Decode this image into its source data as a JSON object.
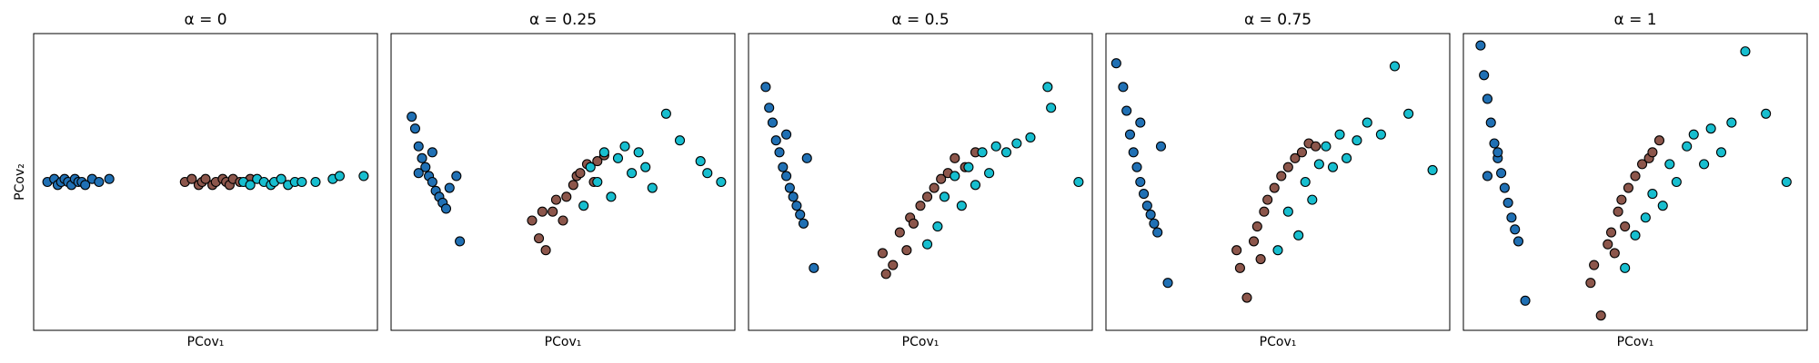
{
  "chart_data": [
    {
      "type": "scatter",
      "title": "α = 0",
      "xlabel": "PCov₁",
      "ylabel": "PCov₂",
      "xlim": [
        0,
        100
      ],
      "ylim": [
        0,
        100
      ],
      "series": [
        {
          "color": "#2070b4",
          "x": [
            4,
            6,
            7,
            8,
            9,
            10,
            11,
            12,
            13,
            14,
            15,
            17,
            19,
            22
          ],
          "values": [
            50,
            51,
            49,
            50,
            51,
            50,
            49,
            51,
            50,
            50,
            49,
            51,
            50,
            51
          ]
        },
        {
          "color": "#8c564b",
          "x": [
            44,
            46,
            48,
            49,
            50,
            52,
            53,
            55,
            56,
            57,
            58,
            60,
            62,
            63
          ],
          "values": [
            50,
            51,
            49,
            50,
            51,
            49,
            50,
            51,
            50,
            49,
            51,
            50,
            50,
            51
          ]
        },
        {
          "color": "#17becf",
          "x": [
            61,
            63,
            65,
            67,
            69,
            70,
            72,
            74,
            76,
            78,
            82,
            87,
            89,
            96
          ],
          "values": [
            50,
            49,
            51,
            50,
            49,
            50,
            51,
            49,
            50,
            50,
            50,
            51,
            52,
            52
          ]
        }
      ]
    },
    {
      "type": "scatter",
      "title": "α = 0.25",
      "xlabel": "PCov₁",
      "xlim": [
        0,
        100
      ],
      "ylim": [
        0,
        100
      ],
      "series": [
        {
          "color": "#2070b4",
          "x": [
            6,
            7,
            8,
            9,
            10,
            11,
            12,
            13,
            14,
            15,
            16,
            17,
            19,
            20,
            8,
            12
          ],
          "values": [
            72,
            68,
            62,
            58,
            55,
            52,
            50,
            47,
            45,
            43,
            41,
            48,
            52,
            30,
            53,
            60
          ]
        },
        {
          "color": "#8c564b",
          "x": [
            41,
            43,
            45,
            47,
            48,
            50,
            51,
            53,
            54,
            55,
            57,
            59,
            60,
            62,
            44
          ],
          "values": [
            37,
            31,
            27,
            40,
            44,
            37,
            45,
            49,
            52,
            53,
            56,
            50,
            57,
            59,
            40
          ]
        },
        {
          "color": "#17becf",
          "x": [
            56,
            58,
            60,
            62,
            64,
            66,
            68,
            70,
            72,
            74,
            76,
            80,
            84,
            90,
            92,
            96
          ],
          "values": [
            42,
            55,
            50,
            60,
            45,
            58,
            62,
            53,
            60,
            55,
            48,
            73,
            64,
            57,
            53,
            50
          ]
        }
      ]
    },
    {
      "type": "scatter",
      "title": "α = 0.5",
      "xlabel": "PCov₁",
      "xlim": [
        0,
        100
      ],
      "ylim": [
        0,
        100
      ],
      "series": [
        {
          "color": "#2070b4",
          "x": [
            5,
            6,
            7,
            8,
            9,
            10,
            11,
            12,
            13,
            14,
            15,
            16,
            17,
            19,
            11
          ],
          "values": [
            82,
            75,
            70,
            64,
            60,
            55,
            52,
            48,
            45,
            42,
            39,
            36,
            58,
            21,
            66
          ]
        },
        {
          "color": "#8c564b",
          "x": [
            39,
            40,
            42,
            44,
            46,
            47,
            48,
            50,
            52,
            54,
            56,
            58,
            60,
            63,
            66
          ],
          "values": [
            26,
            19,
            22,
            33,
            27,
            38,
            36,
            42,
            45,
            48,
            51,
            53,
            58,
            55,
            60
          ]
        },
        {
          "color": "#17becf",
          "x": [
            52,
            55,
            57,
            60,
            62,
            64,
            66,
            68,
            70,
            72,
            75,
            78,
            82,
            87,
            88,
            96
          ],
          "values": [
            29,
            35,
            45,
            52,
            42,
            55,
            49,
            60,
            53,
            62,
            60,
            63,
            65,
            82,
            75,
            50
          ]
        }
      ]
    },
    {
      "type": "scatter",
      "title": "α = 0.75",
      "xlabel": "PCov₁",
      "xlim": [
        0,
        100
      ],
      "ylim": [
        0,
        100
      ],
      "series": [
        {
          "color": "#2070b4",
          "x": [
            3,
            5,
            6,
            7,
            8,
            9,
            10,
            11,
            12,
            13,
            14,
            15,
            16,
            18,
            10
          ],
          "values": [
            90,
            82,
            74,
            66,
            60,
            55,
            50,
            46,
            42,
            39,
            36,
            33,
            62,
            16,
            70
          ]
        },
        {
          "color": "#8c564b",
          "x": [
            38,
            39,
            41,
            43,
            44,
            46,
            47,
            49,
            51,
            53,
            55,
            57,
            59,
            61,
            45
          ],
          "values": [
            27,
            21,
            11,
            30,
            35,
            40,
            44,
            48,
            52,
            55,
            58,
            60,
            63,
            62,
            24
          ]
        },
        {
          "color": "#17becf",
          "x": [
            50,
            53,
            56,
            58,
            60,
            62,
            64,
            66,
            68,
            70,
            73,
            76,
            80,
            84,
            88,
            95
          ],
          "values": [
            27,
            40,
            32,
            50,
            44,
            56,
            62,
            55,
            66,
            58,
            64,
            70,
            66,
            89,
            73,
            54
          ]
        }
      ]
    },
    {
      "type": "scatter",
      "title": "α = 1",
      "xlabel": "PCov₁",
      "xlim": [
        0,
        100
      ],
      "ylim": [
        0,
        100
      ],
      "series": [
        {
          "color": "#2070b4",
          "x": [
            5,
            6,
            7,
            8,
            9,
            10,
            11,
            12,
            13,
            14,
            15,
            16,
            18,
            10,
            7
          ],
          "values": [
            96,
            86,
            78,
            70,
            63,
            58,
            53,
            48,
            43,
            38,
            34,
            30,
            10,
            60,
            52
          ]
        },
        {
          "color": "#8c564b",
          "x": [
            37,
            38,
            40,
            42,
            43,
            45,
            46,
            48,
            50,
            52,
            54,
            55,
            57,
            44,
            47
          ],
          "values": [
            16,
            22,
            5,
            29,
            33,
            40,
            44,
            48,
            52,
            56,
            58,
            60,
            64,
            26,
            35
          ]
        },
        {
          "color": "#17becf",
          "x": [
            47,
            50,
            53,
            55,
            58,
            60,
            62,
            65,
            67,
            70,
            72,
            75,
            78,
            82,
            88,
            94
          ],
          "values": [
            21,
            32,
            38,
            46,
            42,
            56,
            50,
            62,
            66,
            56,
            68,
            60,
            70,
            94,
            73,
            50
          ]
        }
      ]
    }
  ]
}
